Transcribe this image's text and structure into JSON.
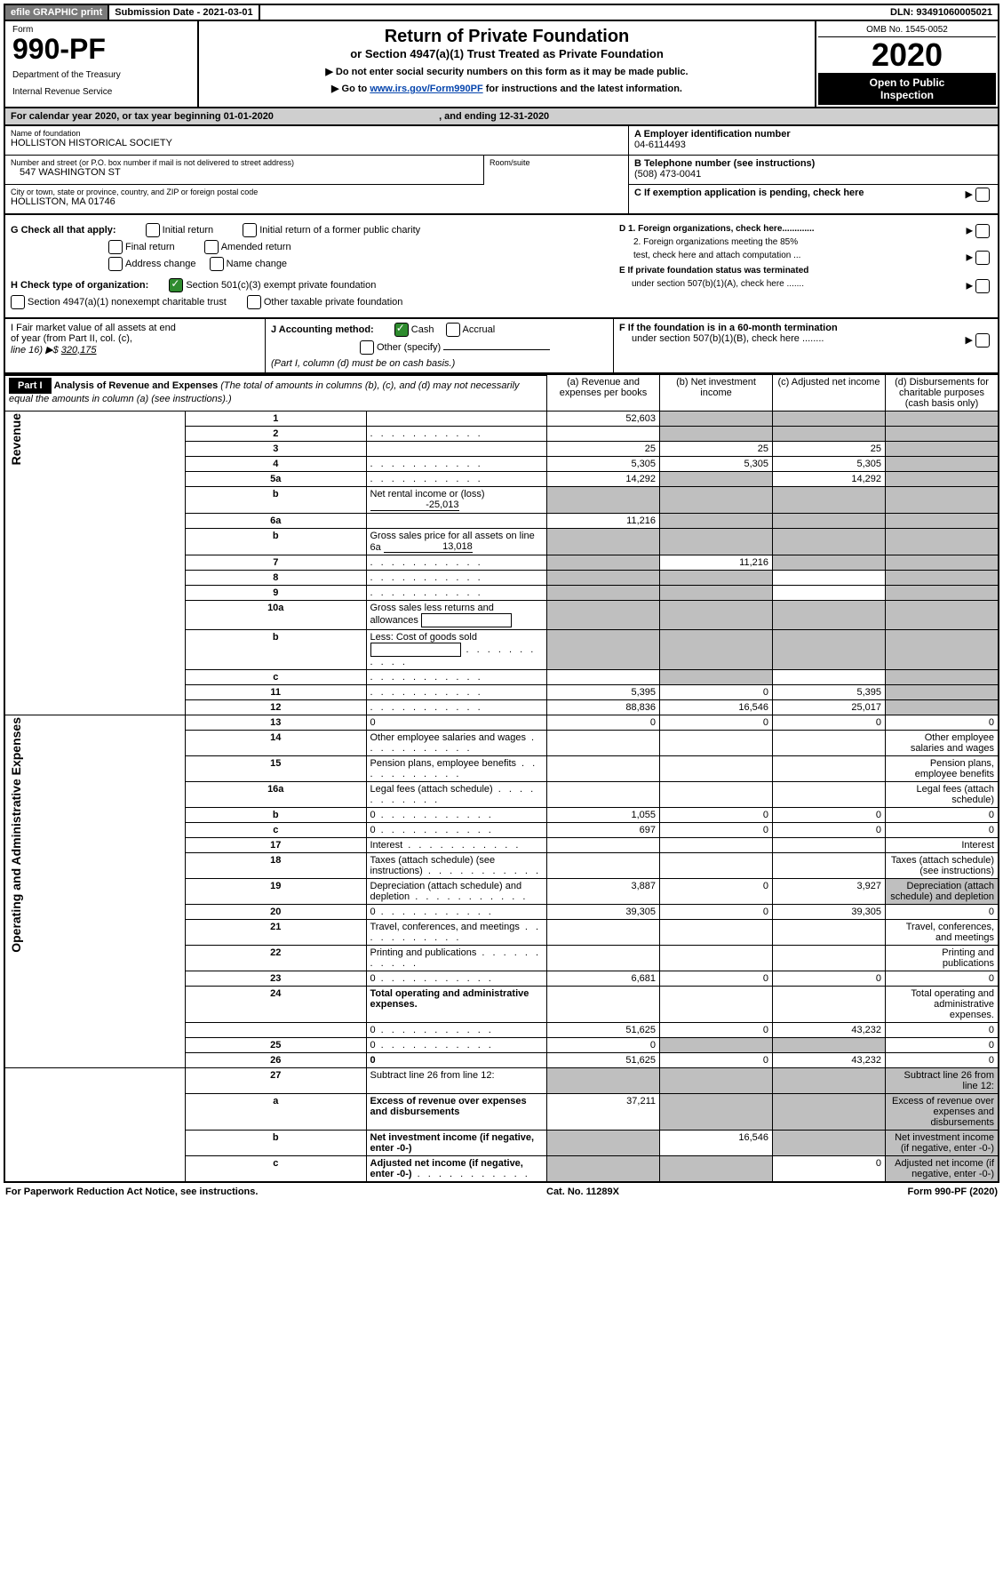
{
  "topbar": {
    "efile": "efile GRAPHIC print",
    "subdate_label": "Submission Date - ",
    "subdate": "2021-03-01",
    "dln_label": "DLN: ",
    "dln": "93491060005021"
  },
  "header": {
    "form_label": "Form",
    "form_num": "990-PF",
    "dept1": "Department of the Treasury",
    "dept2": "Internal Revenue Service",
    "title": "Return of Private Foundation",
    "subtitle": "or Section 4947(a)(1) Trust Treated as Private Foundation",
    "warn1": "▶ Do not enter social security numbers on this form as it may be made public.",
    "warn2_pre": "▶ Go to ",
    "warn2_link": "www.irs.gov/Form990PF",
    "warn2_post": " for instructions and the latest information.",
    "omb": "OMB No. 1545-0052",
    "year": "2020",
    "open1": "Open to Public",
    "open2": "Inspection"
  },
  "cal": {
    "text_pre": "For calendar year 2020, or tax year beginning ",
    "begin": "01-01-2020",
    "mid": " , and ending ",
    "end": "12-31-2020"
  },
  "info": {
    "name_label": "Name of foundation",
    "name": "HOLLISTON HISTORICAL SOCIETY",
    "street_label": "Number and street (or P.O. box number if mail is not delivered to street address)",
    "street": "547 WASHINGTON ST",
    "room_label": "Room/suite",
    "room": "",
    "city_label": "City or town, state or province, country, and ZIP or foreign postal code",
    "city": "HOLLISTON, MA  01746",
    "A_label": "A Employer identification number",
    "A_val": "04-6114493",
    "B_label": "B Telephone number (see instructions)",
    "B_val": "(508) 473-0041",
    "C_label": "C If exemption application is pending, check here",
    "D1": "D 1. Foreign organizations, check here.............",
    "D2a": "2. Foreign organizations meeting the 85%",
    "D2b": "test, check here and attach computation ...",
    "E1": "E  If private foundation status was terminated",
    "E2": "under section 507(b)(1)(A), check here .......",
    "F1": "F  If the foundation is in a 60-month termination",
    "F2": "under section 507(b)(1)(B), check here ........"
  },
  "G": {
    "label": "G Check all that apply:",
    "o1": "Initial return",
    "o2": "Initial return of a former public charity",
    "o3": "Final return",
    "o4": "Amended return",
    "o5": "Address change",
    "o6": "Name change"
  },
  "H": {
    "label": "H Check type of organization:",
    "o1": "Section 501(c)(3) exempt private foundation",
    "o2": "Section 4947(a)(1) nonexempt charitable trust",
    "o3": "Other taxable private foundation"
  },
  "I": {
    "l1": "I Fair market value of all assets at end",
    "l2": "of year (from Part II, col. (c),",
    "l3_pre": "line 16) ▶$ ",
    "l3_val": "320,175"
  },
  "J": {
    "label": "J Accounting method:",
    "o1": "Cash",
    "o2": "Accrual",
    "o3": "Other (specify)",
    "note": "(Part I, column (d) must be on cash basis.)"
  },
  "partI": {
    "tag": "Part I",
    "title": "Analysis of Revenue and Expenses ",
    "title_note": "(The total of amounts in columns (b), (c), and (d) may not necessarily equal the amounts in column (a) (see instructions).)",
    "col_a": "(a)   Revenue and expenses per books",
    "col_b": "(b)  Net investment income",
    "col_c": "(c)  Adjusted net income",
    "col_d": "(d)  Disbursements for charitable purposes (cash basis only)"
  },
  "side": {
    "rev": "Revenue",
    "exp": "Operating and Administrative Expenses"
  },
  "rows": [
    {
      "n": "1",
      "d": "",
      "a": "52,603",
      "b": "",
      "c": "",
      "ga": false,
      "gb": true,
      "gc": true,
      "gd": true
    },
    {
      "n": "2",
      "d": "",
      "a": "",
      "b": "",
      "c": "",
      "ga": false,
      "gb": true,
      "gc": true,
      "gd": true,
      "dots": true,
      "bold_word": "not"
    },
    {
      "n": "3",
      "d": "",
      "a": "25",
      "b": "25",
      "c": "25",
      "ga": false,
      "gb": false,
      "gc": false,
      "gd": true
    },
    {
      "n": "4",
      "d": "",
      "a": "5,305",
      "b": "5,305",
      "c": "5,305",
      "ga": false,
      "gb": false,
      "gc": false,
      "gd": true,
      "dots": true
    },
    {
      "n": "5a",
      "d": "",
      "a": "14,292",
      "b": "",
      "c": "14,292",
      "ga": false,
      "gb": true,
      "gc": false,
      "gd": true,
      "dots": true
    },
    {
      "n": "b",
      "d_pre": "Net rental income or (loss)",
      "inline": "-25,013",
      "a": "",
      "b": "",
      "c": "",
      "d": "",
      "ga": true,
      "gb": true,
      "gc": true,
      "gd": true
    },
    {
      "n": "6a",
      "d": "",
      "a": "11,216",
      "b": "",
      "c": "",
      "ga": false,
      "gb": true,
      "gc": true,
      "gd": true
    },
    {
      "n": "b",
      "d_pre": "Gross sales price for all assets on line 6a",
      "inline": "13,018",
      "a": "",
      "b": "",
      "c": "",
      "d": "",
      "ga": true,
      "gb": true,
      "gc": true,
      "gd": true
    },
    {
      "n": "7",
      "d": "",
      "a": "",
      "b": "11,216",
      "c": "",
      "ga": true,
      "gb": false,
      "gc": true,
      "gd": true,
      "dots": true
    },
    {
      "n": "8",
      "d": "",
      "a": "",
      "b": "",
      "c": "",
      "ga": true,
      "gb": true,
      "gc": false,
      "gd": true,
      "dots": true
    },
    {
      "n": "9",
      "d": "",
      "a": "",
      "b": "",
      "c": "",
      "ga": true,
      "gb": true,
      "gc": false,
      "gd": true,
      "dots": true
    },
    {
      "n": "10a",
      "d_pre": "Gross sales less returns and allowances",
      "inlinebox": true,
      "a": "",
      "b": "",
      "c": "",
      "d": "",
      "ga": true,
      "gb": true,
      "gc": true,
      "gd": true
    },
    {
      "n": "b",
      "d_pre": "Less: Cost of goods sold",
      "inlinebox": true,
      "a": "",
      "b": "",
      "c": "",
      "d": "",
      "ga": true,
      "gb": true,
      "gc": true,
      "gd": true,
      "dots": true
    },
    {
      "n": "c",
      "d": "",
      "a": "",
      "b": "",
      "c": "",
      "ga": false,
      "gb": true,
      "gc": false,
      "gd": true,
      "dots": true
    },
    {
      "n": "11",
      "d": "",
      "a": "5,395",
      "b": "0",
      "c": "5,395",
      "ga": false,
      "gb": false,
      "gc": false,
      "gd": true,
      "dots": true
    },
    {
      "n": "12",
      "d": "",
      "a": "88,836",
      "b": "16,546",
      "c": "25,017",
      "ga": false,
      "gb": false,
      "gc": false,
      "gd": true,
      "bold": true,
      "dots": true
    }
  ],
  "exp_rows": [
    {
      "n": "13",
      "d": "0",
      "a": "0",
      "b": "0",
      "c": "0"
    },
    {
      "n": "14",
      "d": "Other employee salaries and wages",
      "dots": true
    },
    {
      "n": "15",
      "d": "Pension plans, employee benefits",
      "dots": true
    },
    {
      "n": "16a",
      "d": "Legal fees (attach schedule)",
      "dots": true
    },
    {
      "n": "b",
      "d": "0",
      "a": "1,055",
      "b": "0",
      "c": "0",
      "dots": true
    },
    {
      "n": "c",
      "d": "0",
      "a": "697",
      "b": "0",
      "c": "0",
      "dots": true
    },
    {
      "n": "17",
      "d": "Interest",
      "dots": true
    },
    {
      "n": "18",
      "d": "Taxes (attach schedule) (see instructions)",
      "dots": true
    },
    {
      "n": "19",
      "d": "Depreciation (attach schedule) and depletion",
      "a": "3,887",
      "b": "0",
      "c": "3,927",
      "gd": true,
      "dots": true
    },
    {
      "n": "20",
      "d": "0",
      "a": "39,305",
      "b": "0",
      "c": "39,305",
      "dots": true
    },
    {
      "n": "21",
      "d": "Travel, conferences, and meetings",
      "dots": true
    },
    {
      "n": "22",
      "d": "Printing and publications",
      "dots": true
    },
    {
      "n": "23",
      "d": "0",
      "a": "6,681",
      "b": "0",
      "c": "0",
      "dots": true
    },
    {
      "n": "24",
      "d": "Total operating and administrative expenses.",
      "bold": true
    },
    {
      "n": "",
      "d": "0",
      "a": "51,625",
      "b": "0",
      "c": "43,232",
      "dots": true
    },
    {
      "n": "25",
      "d": "0",
      "a": "0",
      "gb": true,
      "gc": true,
      "dots": true
    },
    {
      "n": "26",
      "d": "0",
      "a": "51,625",
      "b": "0",
      "c": "43,232",
      "bold": true
    }
  ],
  "bottom_rows": [
    {
      "n": "27",
      "d": "Subtract line 26 from line 12:",
      "ga": true,
      "gb": true,
      "gc": true,
      "gd": true
    },
    {
      "n": "a",
      "d": "Excess of revenue over expenses and disbursements",
      "a": "37,211",
      "gb": true,
      "gc": true,
      "gd": true,
      "bold": true
    },
    {
      "n": "b",
      "d": "Net investment income (if negative, enter -0-)",
      "b": "16,546",
      "ga": true,
      "gc": true,
      "gd": true,
      "bold": true
    },
    {
      "n": "c",
      "d": "Adjusted net income (if negative, enter -0-)",
      "c": "0",
      "ga": true,
      "gb": true,
      "gd": true,
      "bold": true,
      "dots": true
    }
  ],
  "footer": {
    "left": "For Paperwork Reduction Act Notice, see instructions.",
    "mid": "Cat. No. 11289X",
    "right": "Form 990-PF (2020)"
  }
}
